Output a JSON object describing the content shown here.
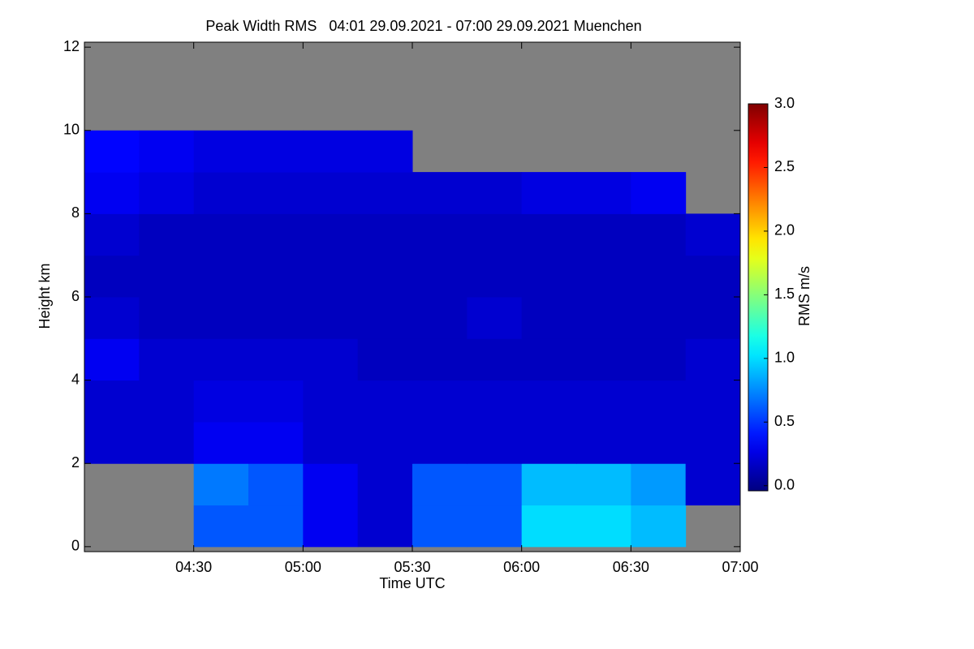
{
  "chart_data": {
    "type": "heatmap",
    "title": "Peak Width RMS   04:01 29.09.2021 - 07:00 29.09.2021 Muenchen",
    "x_label": "Time UTC",
    "y_label": "Height km",
    "xlim": [
      4.0,
      7.0
    ],
    "xticks": [
      {
        "value": 4.5,
        "label": "04:30"
      },
      {
        "value": 5.0,
        "label": "05:00"
      },
      {
        "value": 5.5,
        "label": "05:30"
      },
      {
        "value": 6.0,
        "label": "06:00"
      },
      {
        "value": 6.5,
        "label": "06:30"
      },
      {
        "value": 7.0,
        "label": "07:00"
      }
    ],
    "ylim": [
      -0.12,
      12.12
    ],
    "yticks": [
      0,
      2,
      4,
      6,
      8,
      10,
      12
    ],
    "x_edges": [
      4.0,
      4.25,
      4.5,
      4.75,
      5.0,
      5.25,
      5.5,
      5.75,
      6.0,
      6.25,
      6.5,
      6.75,
      7.0
    ],
    "y_edges": [
      0,
      1,
      2,
      3,
      4,
      5,
      6,
      7,
      8,
      9,
      10,
      11,
      12
    ],
    "z": [
      [
        null,
        null,
        0.6,
        0.6,
        0.3,
        0.2,
        0.6,
        0.6,
        1.0,
        1.0,
        0.9,
        null
      ],
      [
        null,
        null,
        0.7,
        0.6,
        0.3,
        0.2,
        0.6,
        0.6,
        0.9,
        0.9,
        0.8,
        0.2
      ],
      [
        0.2,
        0.2,
        0.3,
        0.3,
        0.2,
        0.2,
        0.2,
        0.2,
        0.2,
        0.2,
        0.2,
        0.2
      ],
      [
        0.2,
        0.2,
        0.25,
        0.25,
        0.2,
        0.2,
        0.2,
        0.2,
        0.2,
        0.2,
        0.2,
        0.2
      ],
      [
        0.3,
        0.2,
        0.2,
        0.2,
        0.2,
        0.15,
        0.15,
        0.15,
        0.15,
        0.15,
        0.15,
        0.2
      ],
      [
        0.2,
        0.15,
        0.15,
        0.15,
        0.15,
        0.15,
        0.15,
        0.2,
        0.15,
        0.15,
        0.15,
        0.15
      ],
      [
        0.15,
        0.15,
        0.15,
        0.15,
        0.15,
        0.15,
        0.15,
        0.15,
        0.15,
        0.15,
        0.15,
        0.15
      ],
      [
        0.2,
        0.15,
        0.15,
        0.15,
        0.15,
        0.15,
        0.15,
        0.15,
        0.15,
        0.15,
        0.15,
        0.2
      ],
      [
        0.3,
        0.25,
        0.2,
        0.2,
        0.2,
        0.2,
        0.2,
        0.2,
        0.25,
        0.25,
        0.3,
        null
      ],
      [
        0.35,
        0.3,
        0.25,
        0.25,
        0.25,
        0.25,
        null,
        null,
        null,
        null,
        null,
        null
      ],
      [
        null,
        null,
        null,
        null,
        null,
        null,
        null,
        null,
        null,
        null,
        null,
        null
      ],
      [
        null,
        null,
        null,
        null,
        null,
        null,
        null,
        null,
        null,
        null,
        null,
        null
      ]
    ],
    "missing_color": "#808080",
    "colormap": "jet",
    "colorbar": {
      "label": "RMS m/s",
      "lim": [
        -0.04,
        3.0
      ],
      "ticks": [
        {
          "value": 0,
          "label": "0.0"
        },
        {
          "value": 0.5,
          "label": "0.5"
        },
        {
          "value": 1.0,
          "label": "1.0"
        },
        {
          "value": 1.5,
          "label": "1.5"
        },
        {
          "value": 2.0,
          "label": "2.0"
        },
        {
          "value": 2.5,
          "label": "2.5"
        },
        {
          "value": 3.0,
          "label": "3.0"
        }
      ]
    }
  }
}
